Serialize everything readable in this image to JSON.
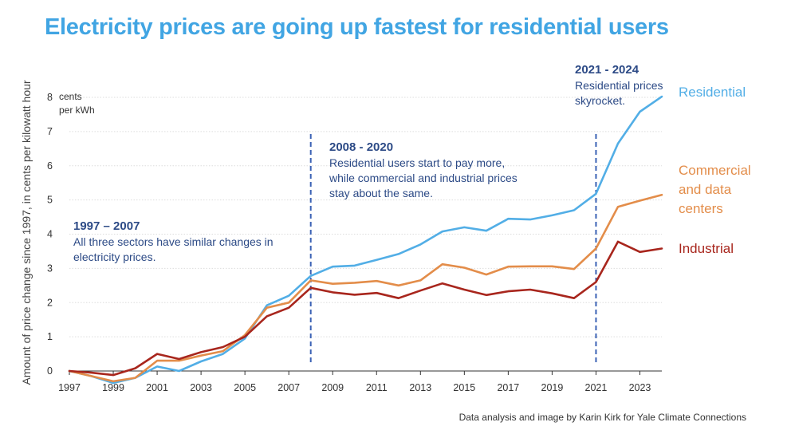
{
  "title": "Electricity prices are going up fastest for residential users",
  "credit": "Data analysis and image by Karin Kirk for Yale Climate Connections",
  "colors": {
    "title": "#41a5e3",
    "residential": "#52aee6",
    "commercial": "#e38d4a",
    "industrial": "#a8261d",
    "annotation": "#2c4a86",
    "marker": "#3b62b5",
    "grid": "#dddddd",
    "axis": "#333333"
  },
  "chart_data": {
    "type": "line",
    "title": "Electricity prices are going up fastest for residential users",
    "ylabel": "Amount of price change since 1997, in cents per kilowatt hour",
    "yunit": [
      "cents",
      "per kWh"
    ],
    "xlabel": "",
    "xlim": [
      1997,
      2024
    ],
    "ylim": [
      0,
      8
    ],
    "yticks": [
      0,
      1,
      2,
      3,
      4,
      5,
      6,
      7,
      8
    ],
    "xticks": [
      1997,
      1999,
      2001,
      2003,
      2005,
      2007,
      2009,
      2011,
      2013,
      2015,
      2017,
      2019,
      2021,
      2023
    ],
    "grid": true,
    "x": [
      1997,
      1998,
      1999,
      2000,
      2001,
      2002,
      2003,
      2004,
      2005,
      2006,
      2007,
      2008,
      2009,
      2010,
      2011,
      2012,
      2013,
      2014,
      2015,
      2016,
      2017,
      2018,
      2019,
      2020,
      2021,
      2022,
      2023,
      2024
    ],
    "series": [
      {
        "name": "Residential",
        "color_key": "residential",
        "values": [
          0,
          -0.15,
          -0.35,
          -0.2,
          0.13,
          0.0,
          0.28,
          0.5,
          0.95,
          1.92,
          2.2,
          2.78,
          3.05,
          3.08,
          3.25,
          3.42,
          3.7,
          4.08,
          4.2,
          4.1,
          4.45,
          4.43,
          4.55,
          4.7,
          5.18,
          6.65,
          7.58,
          8.02
        ]
      },
      {
        "name": "Commercial and data centers",
        "color_key": "commercial",
        "values": [
          0,
          -0.15,
          -0.3,
          -0.2,
          0.3,
          0.3,
          0.45,
          0.58,
          1.05,
          1.85,
          2.0,
          2.65,
          2.55,
          2.58,
          2.63,
          2.5,
          2.65,
          3.12,
          3.02,
          2.82,
          3.05,
          3.06,
          3.06,
          2.98,
          3.58,
          4.8,
          4.98,
          5.15
        ]
      },
      {
        "name": "Industrial",
        "color_key": "industrial",
        "values": [
          0,
          -0.05,
          -0.12,
          0.08,
          0.5,
          0.35,
          0.55,
          0.7,
          1.0,
          1.6,
          1.85,
          2.43,
          2.3,
          2.23,
          2.28,
          2.13,
          2.35,
          2.56,
          2.38,
          2.22,
          2.33,
          2.38,
          2.27,
          2.13,
          2.6,
          3.78,
          3.48,
          3.58
        ]
      }
    ],
    "markers": [
      2008,
      2021
    ],
    "series_labels": {
      "residential": "Residential",
      "commercial": [
        "Commercial",
        "and data",
        "centers"
      ],
      "industrial": "Industrial"
    },
    "annotations": [
      {
        "heading": "1997 – 2007",
        "lines": [
          "All three sectors have similar changes in",
          "electricity prices."
        ]
      },
      {
        "heading": "2008 - 2020",
        "lines": [
          "Residential users start to pay more,",
          "while commercial and industrial prices",
          "stay about the same."
        ]
      },
      {
        "heading": "2021 - 2024",
        "lines": [
          "Residential prices",
          "skyrocket."
        ]
      }
    ]
  }
}
